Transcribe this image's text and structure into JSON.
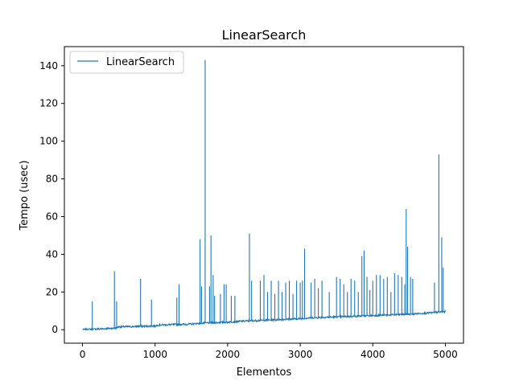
{
  "chart_data": {
    "type": "line",
    "title": "LinearSearch",
    "xlabel": "Elementos",
    "ylabel": "Tempo (usec)",
    "xlim": [
      -250,
      5250
    ],
    "ylim": [
      -7.15,
      150.15
    ],
    "x_ticks": [
      0,
      1000,
      2000,
      3000,
      4000,
      5000
    ],
    "x_tick_labels": [
      "0",
      "1000",
      "2000",
      "3000",
      "4000",
      "5000"
    ],
    "y_ticks": [
      0,
      20,
      40,
      60,
      80,
      100,
      120,
      140
    ],
    "y_tick_labels": [
      "0",
      "20",
      "40",
      "60",
      "80",
      "100",
      "120",
      "140"
    ],
    "grid": false,
    "legend_placement": "top-left",
    "colors": {
      "series": "#1f77b4",
      "axes": "#000000",
      "background": "#ffffff"
    },
    "series": [
      {
        "name": "LinearSearch",
        "baseline": [
          [
            0,
            0
          ],
          [
            100,
            0.2
          ],
          [
            450,
            0.8
          ],
          [
            500,
            1.5
          ],
          [
            1000,
            2
          ],
          [
            1050,
            2.5
          ],
          [
            1500,
            3
          ],
          [
            1600,
            3.4
          ],
          [
            2000,
            4
          ],
          [
            2200,
            4.5
          ],
          [
            2500,
            5
          ],
          [
            3000,
            5.8
          ],
          [
            3100,
            6.2
          ],
          [
            3500,
            6.8
          ],
          [
            4000,
            7.5
          ],
          [
            4500,
            8.2
          ],
          [
            4800,
            9
          ],
          [
            5000,
            9.6
          ]
        ],
        "spikes": [
          [
            135,
            15
          ],
          [
            440,
            31
          ],
          [
            470,
            15
          ],
          [
            800,
            27
          ],
          [
            950,
            16
          ],
          [
            1300,
            17
          ],
          [
            1330,
            24
          ],
          [
            1620,
            48
          ],
          [
            1640,
            23
          ],
          [
            1690,
            143
          ],
          [
            1750,
            23
          ],
          [
            1770,
            50
          ],
          [
            1800,
            29
          ],
          [
            1820,
            18
          ],
          [
            1900,
            19
          ],
          [
            1950,
            24
          ],
          [
            1980,
            24
          ],
          [
            2050,
            18
          ],
          [
            2100,
            18
          ],
          [
            2300,
            51
          ],
          [
            2330,
            26
          ],
          [
            2450,
            26
          ],
          [
            2500,
            29
          ],
          [
            2550,
            20
          ],
          [
            2600,
            26
          ],
          [
            2650,
            19
          ],
          [
            2700,
            26
          ],
          [
            2750,
            20
          ],
          [
            2800,
            25
          ],
          [
            2850,
            26
          ],
          [
            2900,
            19
          ],
          [
            2950,
            26
          ],
          [
            3000,
            25
          ],
          [
            3030,
            26
          ],
          [
            3060,
            43
          ],
          [
            3150,
            25
          ],
          [
            3200,
            27
          ],
          [
            3250,
            22
          ],
          [
            3300,
            26
          ],
          [
            3400,
            20
          ],
          [
            3500,
            28
          ],
          [
            3550,
            27
          ],
          [
            3600,
            24
          ],
          [
            3650,
            20
          ],
          [
            3700,
            27
          ],
          [
            3750,
            26
          ],
          [
            3800,
            20
          ],
          [
            3850,
            39
          ],
          [
            3880,
            42
          ],
          [
            3920,
            28
          ],
          [
            3960,
            21
          ],
          [
            4000,
            26
          ],
          [
            4050,
            29
          ],
          [
            4100,
            29
          ],
          [
            4150,
            27
          ],
          [
            4200,
            28
          ],
          [
            4250,
            20
          ],
          [
            4300,
            30
          ],
          [
            4350,
            29
          ],
          [
            4400,
            28
          ],
          [
            4440,
            24
          ],
          [
            4460,
            64
          ],
          [
            4480,
            44
          ],
          [
            4520,
            28
          ],
          [
            4550,
            27
          ],
          [
            4850,
            25
          ],
          [
            4910,
            93
          ],
          [
            4950,
            49
          ],
          [
            4970,
            33
          ]
        ]
      }
    ]
  }
}
